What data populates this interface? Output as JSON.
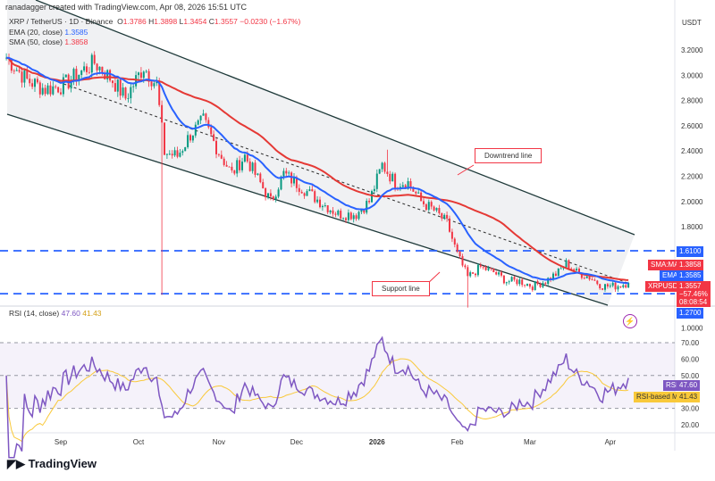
{
  "credit": "ranadagger created with TradingView.com, Apr 08, 2026 15:51 UTC",
  "legend": {
    "symbol": "XRP / TetherUS · 1D · Binance",
    "o_label": "O",
    "o": "1.3786",
    "h_label": "H",
    "h": "1.3898",
    "l_label": "L",
    "l": "1.3454",
    "c_label": "C",
    "c": "1.3557",
    "change": "−0.0230 (−1.67%)",
    "ema": "EMA (20, close)",
    "ema_val": "1.3585",
    "sma": "SMA (50, close)",
    "sma_val": "1.3858",
    "rsi": "RSI (14, close)",
    "rsi_val": "47.60",
    "rsi_ma_val": "41.43"
  },
  "currency": "USDT",
  "tags": {
    "level_high": "1.6100",
    "sma_label": "SMA:MA",
    "sma": "1.3858",
    "ema_label": "EMA",
    "ema": "1.3585",
    "sym_label": "XRPUSDT",
    "price": "1.3557",
    "pct": "−57.46%",
    "countdown": "08:08:54",
    "level_low": "1.2700",
    "rsi_label": "RSI",
    "rsi": "47.60",
    "rsi_ma_label": "RSI-based MA",
    "rsi_ma": "41.43"
  },
  "annotations": {
    "downtrend": "Downtrend line",
    "support": "Support line"
  },
  "brand": "TradingView",
  "colors": {
    "up": "#089981",
    "down": "#f23645",
    "ema": "#2962ff",
    "sma": "#e53935",
    "rsi": "#7e57c2",
    "rsi_ma": "#f9c93a",
    "level": "#2962ff"
  },
  "chart_data": {
    "type": "candlestick",
    "price_axis": {
      "ticks": [
        "3.2000",
        "3.0000",
        "2.8000",
        "2.6000",
        "2.4000",
        "2.2000",
        "2.0000",
        "1.8000",
        "1.0000"
      ],
      "range": [
        1.0,
        3.3
      ]
    },
    "rsi_axis": {
      "ticks": [
        "70.00",
        "60.00",
        "50.00",
        "30.00",
        "20.00"
      ],
      "range": [
        15,
        80
      ]
    },
    "x_ticks": [
      "Sep",
      "Oct",
      "Nov",
      "Dec",
      "2026",
      "Feb",
      "Mar",
      "Apr"
    ],
    "levels": [
      1.61,
      1.27
    ],
    "approx_closes": [
      [
        "2025-08-11",
        3.14
      ],
      [
        "2025-08-19",
        2.96
      ],
      [
        "2025-08-26",
        2.89
      ],
      [
        "2025-09-02",
        2.92
      ],
      [
        "2025-09-09",
        3.03
      ],
      [
        "2025-09-14",
        3.1
      ],
      [
        "2025-09-21",
        2.96
      ],
      [
        "2025-09-26",
        2.82
      ],
      [
        "2025-10-03",
        3.07
      ],
      [
        "2025-10-08",
        2.92
      ],
      [
        "2025-10-11",
        2.39
      ],
      [
        "2025-10-16",
        2.36
      ],
      [
        "2025-10-21",
        2.53
      ],
      [
        "2025-10-26",
        2.64
      ],
      [
        "2025-11-01",
        2.39
      ],
      [
        "2025-11-06",
        2.22
      ],
      [
        "2025-11-11",
        2.36
      ],
      [
        "2025-11-16",
        2.18
      ],
      [
        "2025-11-21",
        2.0
      ],
      [
        "2025-11-26",
        2.22
      ],
      [
        "2025-12-03",
        2.11
      ],
      [
        "2025-12-10",
        2.0
      ],
      [
        "2025-12-17",
        1.9
      ],
      [
        "2025-12-24",
        1.9
      ],
      [
        "2025-12-29",
        2.0
      ],
      [
        "2026-01-03",
        2.29
      ],
      [
        "2026-01-08",
        2.15
      ],
      [
        "2026-01-13",
        2.15
      ],
      [
        "2026-01-18",
        2.0
      ],
      [
        "2026-01-23",
        1.93
      ],
      [
        "2026-01-28",
        1.83
      ],
      [
        "2026-02-01",
        1.58
      ],
      [
        "2026-02-05",
        1.4
      ],
      [
        "2026-02-10",
        1.48
      ],
      [
        "2026-02-15",
        1.44
      ],
      [
        "2026-02-20",
        1.37
      ],
      [
        "2026-02-25",
        1.37
      ],
      [
        "2026-03-02",
        1.33
      ],
      [
        "2026-03-07",
        1.37
      ],
      [
        "2026-03-12",
        1.44
      ],
      [
        "2026-03-15",
        1.51
      ],
      [
        "2026-03-19",
        1.44
      ],
      [
        "2026-03-24",
        1.4
      ],
      [
        "2026-03-29",
        1.33
      ],
      [
        "2026-04-03",
        1.33
      ],
      [
        "2026-04-08",
        1.3557
      ]
    ],
    "notable_wicks": [
      [
        "2025-10-10",
        1.26
      ],
      [
        "2026-01-05",
        2.41
      ],
      [
        "2026-02-05",
        1.16
      ]
    ]
  }
}
